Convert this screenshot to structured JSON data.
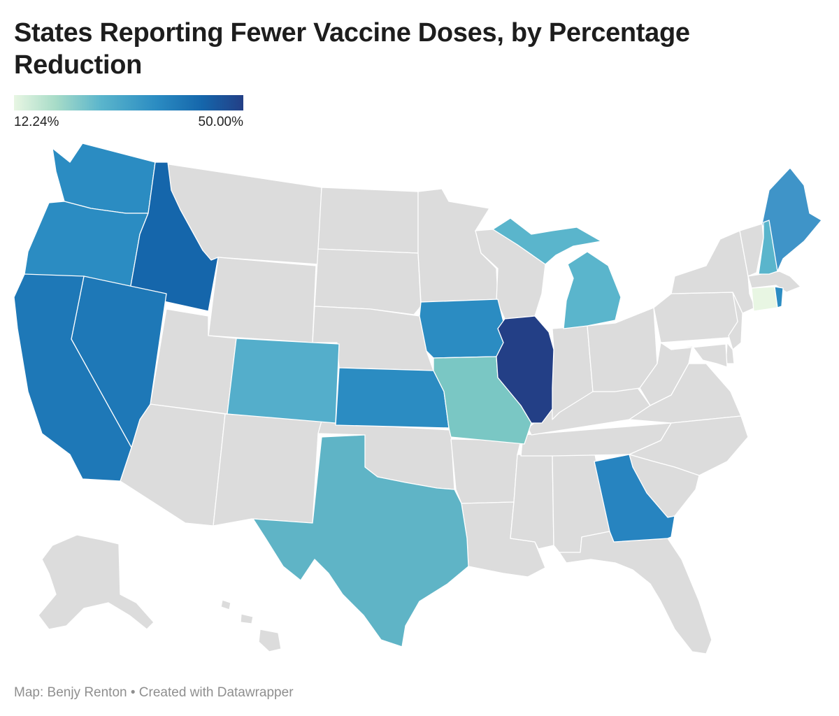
{
  "title": "States Reporting Fewer Vaccine Doses, by Percentage Reduction",
  "legend": {
    "min_label": "12.24%",
    "max_label": "50.00%",
    "colors": [
      "#e8f6e3",
      "#a8dcc8",
      "#5ab5cc",
      "#2b8cc2",
      "#1566ab",
      "#233f86"
    ]
  },
  "no_data_color": "#dcdcdc",
  "reporting_states": [
    "WA",
    "OR",
    "CA",
    "ID",
    "NV",
    "CO",
    "KS",
    "IA",
    "MO",
    "IL",
    "MI",
    "TX",
    "GA",
    "ME",
    "NH",
    "CT",
    "RI"
  ],
  "footer": "Map: Benjy Renton • Created with Datawrapper"
}
